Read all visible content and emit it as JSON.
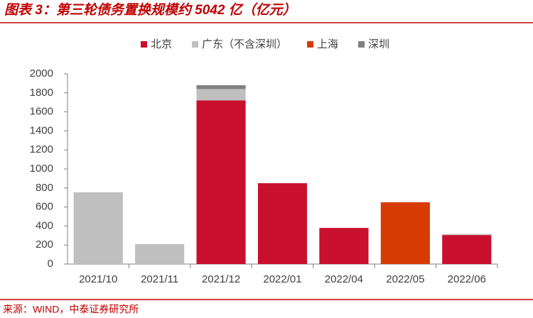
{
  "chart_data": {
    "type": "stacked_bar",
    "title": "图表 3：第三轮债务置换规模约 5042 亿（亿元）",
    "source": "来源：WIND，中泰证券研究所",
    "categories": [
      "2021/10",
      "2021/11",
      "2021/12",
      "2022/01",
      "2022/04",
      "2022/05",
      "2022/06"
    ],
    "series": [
      {
        "name": "北京",
        "color": "#c8102e",
        "values": [
          0,
          0,
          1720,
          850,
          380,
          0,
          305
        ]
      },
      {
        "name": "广东（不含深圳）",
        "color": "#bfbfbf",
        "values": [
          755,
          210,
          120,
          0,
          0,
          0,
          10
        ]
      },
      {
        "name": "上海",
        "color": "#d83b01",
        "values": [
          0,
          0,
          0,
          0,
          0,
          650,
          0
        ]
      },
      {
        "name": "深圳",
        "color": "#808080",
        "values": [
          0,
          0,
          40,
          0,
          0,
          0,
          0
        ]
      }
    ],
    "ylim": [
      0,
      2000
    ],
    "yticks": [
      0,
      200,
      400,
      600,
      800,
      1000,
      1200,
      1400,
      1600,
      1800,
      2000
    ],
    "grid": false,
    "legend": "top"
  }
}
